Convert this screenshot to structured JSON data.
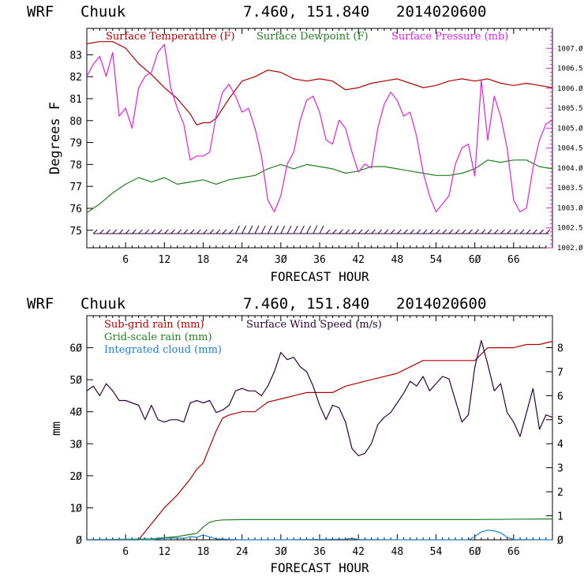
{
  "colors": {
    "temperature": "#b00000",
    "dewpoint": "#208020",
    "pressure": "#e020e0",
    "rain_subgrid": "#b00000",
    "rain_gridscale": "#208020",
    "cloud": "#1e7fd0",
    "wind": "#300040"
  },
  "chart_data": [
    {
      "type": "line",
      "header": {
        "model": "WRF",
        "station": "Chuuk",
        "coords": "7.460, 151.840",
        "init": "2014020600"
      },
      "xlabel": "FORECAST HOUR",
      "ylabel": "Degrees F",
      "xlim": [
        0,
        72
      ],
      "x_ticks": [
        6,
        12,
        18,
        24,
        30,
        36,
        42,
        48,
        54,
        60,
        66
      ],
      "x_tick_labels": [
        "6",
        "12",
        "18",
        "24",
        "3Ø",
        "36",
        "42",
        "48",
        "54",
        "6Ø",
        "66"
      ],
      "ylim_left": [
        74.2,
        84.2
      ],
      "y_ticks_left": [
        75,
        76,
        77,
        78,
        79,
        80,
        81,
        82,
        83
      ],
      "ylim_right": [
        1002.0,
        1007.5
      ],
      "y_ticks_right": [
        1002.0,
        1002.5,
        1003.0,
        1003.5,
        1004.0,
        1004.5,
        1005.0,
        1005.5,
        1006.0,
        1006.5,
        1007.0
      ],
      "y_tick_labels_right": [
        "1002.Ø",
        "1002.5",
        "1003.Ø",
        "1003.5",
        "1004.Ø",
        "1004.5",
        "1005.Ø",
        "1005.5",
        "1006.Ø",
        "1006.5",
        "1007.Ø"
      ],
      "legend": [
        "Surface Temperature (F)",
        "Surface Dewpoint (F)",
        "Surface Pressure (mb)"
      ],
      "series": [
        {
          "name": "Surface Temperature (F)",
          "axis": "left",
          "color_key": "temperature",
          "x": [
            0,
            2,
            4,
            6,
            8,
            10,
            12,
            14,
            16,
            17,
            18,
            19,
            20,
            22,
            24,
            26,
            28,
            30,
            32,
            34,
            36,
            38,
            40,
            42,
            44,
            46,
            48,
            50,
            52,
            54,
            56,
            58,
            60,
            62,
            64,
            66,
            68,
            70,
            72
          ],
          "y": [
            83.5,
            83.6,
            83.6,
            83.3,
            82.6,
            82.1,
            81.5,
            81.0,
            80.3,
            79.8,
            79.9,
            79.9,
            80.1,
            81.0,
            81.8,
            82.0,
            82.3,
            82.2,
            81.9,
            81.8,
            81.9,
            81.8,
            81.4,
            81.5,
            81.7,
            81.8,
            81.9,
            81.7,
            81.5,
            81.6,
            81.8,
            81.9,
            81.8,
            81.9,
            81.7,
            81.6,
            81.7,
            81.6,
            81.5
          ]
        },
        {
          "name": "Surface Dewpoint (F)",
          "axis": "left",
          "color_key": "dewpoint",
          "x": [
            0,
            2,
            4,
            6,
            8,
            10,
            12,
            14,
            16,
            18,
            20,
            22,
            24,
            26,
            28,
            30,
            32,
            34,
            36,
            38,
            40,
            42,
            44,
            46,
            48,
            50,
            52,
            54,
            56,
            58,
            60,
            62,
            64,
            66,
            68,
            70,
            72
          ],
          "y": [
            75.8,
            76.2,
            76.7,
            77.1,
            77.4,
            77.2,
            77.4,
            77.1,
            77.2,
            77.3,
            77.1,
            77.3,
            77.4,
            77.5,
            77.8,
            78.0,
            77.8,
            78.0,
            77.9,
            77.8,
            77.6,
            77.7,
            77.9,
            77.9,
            77.8,
            77.7,
            77.6,
            77.5,
            77.5,
            77.6,
            77.8,
            78.2,
            78.1,
            78.2,
            78.2,
            77.9,
            77.8
          ]
        },
        {
          "name": "Surface Pressure (mb)",
          "axis": "right",
          "color_key": "pressure",
          "x": [
            0,
            1,
            2,
            3,
            4,
            5,
            6,
            7,
            8,
            9,
            10,
            11,
            12,
            13,
            14,
            15,
            16,
            17,
            18,
            19,
            20,
            21,
            22,
            23,
            24,
            25,
            26,
            27,
            28,
            29,
            30,
            31,
            32,
            33,
            34,
            35,
            36,
            37,
            38,
            39,
            40,
            41,
            42,
            43,
            44,
            45,
            46,
            47,
            48,
            49,
            50,
            51,
            52,
            53,
            54,
            55,
            56,
            57,
            58,
            59,
            60,
            61,
            62,
            63,
            64,
            65,
            66,
            67,
            68,
            69,
            70,
            71,
            72
          ],
          "y": [
            1006.3,
            1006.6,
            1006.8,
            1006.3,
            1006.9,
            1005.3,
            1005.5,
            1005.0,
            1006.0,
            1006.3,
            1006.4,
            1006.9,
            1007.1,
            1006.0,
            1005.5,
            1005.1,
            1004.2,
            1004.3,
            1004.3,
            1004.4,
            1005.3,
            1005.9,
            1006.1,
            1005.8,
            1005.4,
            1005.5,
            1005.0,
            1004.3,
            1003.2,
            1002.9,
            1003.3,
            1004.1,
            1004.4,
            1005.2,
            1005.7,
            1005.8,
            1005.4,
            1004.7,
            1004.6,
            1005.2,
            1005.0,
            1004.4,
            1003.9,
            1004.1,
            1004.0,
            1005.0,
            1005.6,
            1005.9,
            1005.7,
            1005.3,
            1005.4,
            1004.8,
            1003.9,
            1003.3,
            1002.9,
            1003.1,
            1003.3,
            1004.1,
            1004.5,
            1004.6,
            1003.8,
            1006.2,
            1004.7,
            1005.8,
            1005.3,
            1004.5,
            1003.2,
            1002.9,
            1003.0,
            1004.0,
            1004.7,
            1005.1,
            1005.2
          ]
        }
      ],
      "wind_barbs_note": "wind barbs along bottom"
    },
    {
      "type": "line",
      "header": {
        "model": "WRF",
        "station": "Chuuk",
        "coords": "7.460, 151.840",
        "init": "2014020600"
      },
      "xlabel": "FORECAST HOUR",
      "ylabel": "mm",
      "xlim": [
        0,
        72
      ],
      "x_ticks": [
        6,
        12,
        18,
        24,
        30,
        36,
        42,
        48,
        54,
        60,
        66
      ],
      "x_tick_labels": [
        "6",
        "12",
        "18",
        "24",
        "3Ø",
        "36",
        "42",
        "48",
        "54",
        "6Ø",
        "66"
      ],
      "ylim_left": [
        0,
        70
      ],
      "y_ticks_left": [
        0,
        10,
        20,
        30,
        40,
        50,
        60
      ],
      "y_tick_labels_left": [
        "Ø",
        "1Ø",
        "2Ø",
        "3Ø",
        "4Ø",
        "5Ø",
        "6Ø"
      ],
      "ylim_right": [
        0,
        9.33
      ],
      "y_ticks_right": [
        0,
        1,
        2,
        3,
        4,
        5,
        6,
        7,
        8
      ],
      "y_tick_labels_right": [
        "Ø",
        "1",
        "2",
        "3",
        "4",
        "5",
        "6",
        "7",
        "8"
      ],
      "legend": [
        "Sub-grid rain (mm)",
        "Grid-scale rain (mm)",
        "Integrated cloud (mm)",
        "Surface Wind Speed (m/s)"
      ],
      "series": [
        {
          "name": "Sub-grid rain (mm)",
          "axis": "left",
          "color_key": "rain_subgrid",
          "x": [
            0,
            8,
            10,
            12,
            14,
            16,
            17,
            18,
            19,
            20,
            21,
            22,
            24,
            26,
            28,
            30,
            32,
            34,
            36,
            38,
            40,
            42,
            44,
            46,
            48,
            50,
            52,
            54,
            56,
            58,
            60,
            62,
            64,
            66,
            68,
            70,
            72
          ],
          "y": [
            0,
            0,
            5,
            10,
            14,
            19,
            22,
            24,
            29,
            34,
            38,
            39,
            40,
            40,
            43,
            44,
            45,
            46,
            46,
            46,
            48,
            49,
            50,
            51,
            52,
            54,
            56,
            56,
            56,
            56,
            56,
            60,
            60,
            60,
            61,
            61,
            62
          ]
        },
        {
          "name": "Grid-scale rain (mm)",
          "axis": "left",
          "color_key": "rain_gridscale",
          "x": [
            0,
            10,
            14,
            17,
            18,
            19,
            20,
            21,
            24,
            30,
            40,
            50,
            60,
            70,
            72
          ],
          "y": [
            0,
            0.3,
            1.0,
            2.0,
            4.0,
            5.5,
            6.0,
            6.2,
            6.3,
            6.3,
            6.3,
            6.3,
            6.3,
            6.5,
            6.5
          ]
        },
        {
          "name": "Integrated cloud (mm)",
          "axis": "left",
          "color_key": "cloud",
          "x": [
            0,
            10,
            12,
            14,
            15,
            16,
            17,
            18,
            19,
            20,
            24,
            30,
            40,
            41,
            42,
            50,
            59,
            60,
            61,
            62,
            63,
            64,
            65,
            66,
            72
          ],
          "y": [
            0,
            0,
            0.5,
            0.6,
            0.4,
            1.0,
            0.8,
            1.5,
            0.9,
            0.3,
            0,
            0,
            0.2,
            0.5,
            0.1,
            0,
            0,
            1.0,
            2.5,
            3.0,
            2.8,
            2.2,
            0.8,
            0.1,
            0
          ]
        },
        {
          "name": "Surface Wind Speed (m/s)",
          "axis": "right",
          "color_key": "wind",
          "x": [
            0,
            1,
            2,
            3,
            4,
            5,
            6,
            7,
            8,
            9,
            10,
            11,
            12,
            13,
            14,
            15,
            16,
            17,
            18,
            19,
            20,
            21,
            22,
            23,
            24,
            25,
            26,
            27,
            28,
            29,
            30,
            31,
            32,
            33,
            34,
            35,
            36,
            37,
            38,
            39,
            40,
            41,
            42,
            43,
            44,
            45,
            46,
            47,
            48,
            49,
            50,
            51,
            52,
            53,
            54,
            55,
            56,
            57,
            58,
            59,
            60,
            61,
            62,
            63,
            64,
            65,
            66,
            67,
            68,
            69,
            70,
            71,
            72
          ],
          "y": [
            6.2,
            6.4,
            6.0,
            6.5,
            6.2,
            5.8,
            5.8,
            5.7,
            5.6,
            5.0,
            5.6,
            5.0,
            4.9,
            5.0,
            5.0,
            4.9,
            5.7,
            5.8,
            5.7,
            5.8,
            5.3,
            5.4,
            5.6,
            6.2,
            6.3,
            6.2,
            6.2,
            6.0,
            6.4,
            7.0,
            7.8,
            7.5,
            7.6,
            7.2,
            7.0,
            6.4,
            5.6,
            5.0,
            5.6,
            5.5,
            4.9,
            3.8,
            3.5,
            3.6,
            4.0,
            4.8,
            5.1,
            5.3,
            5.7,
            6.1,
            6.6,
            6.4,
            6.8,
            6.2,
            6.5,
            6.8,
            6.7,
            5.8,
            4.9,
            5.2,
            7.2,
            8.3,
            7.3,
            6.2,
            6.5,
            5.3,
            4.9,
            4.3,
            5.3,
            6.3,
            4.6,
            5.2,
            5.1
          ]
        }
      ]
    }
  ]
}
